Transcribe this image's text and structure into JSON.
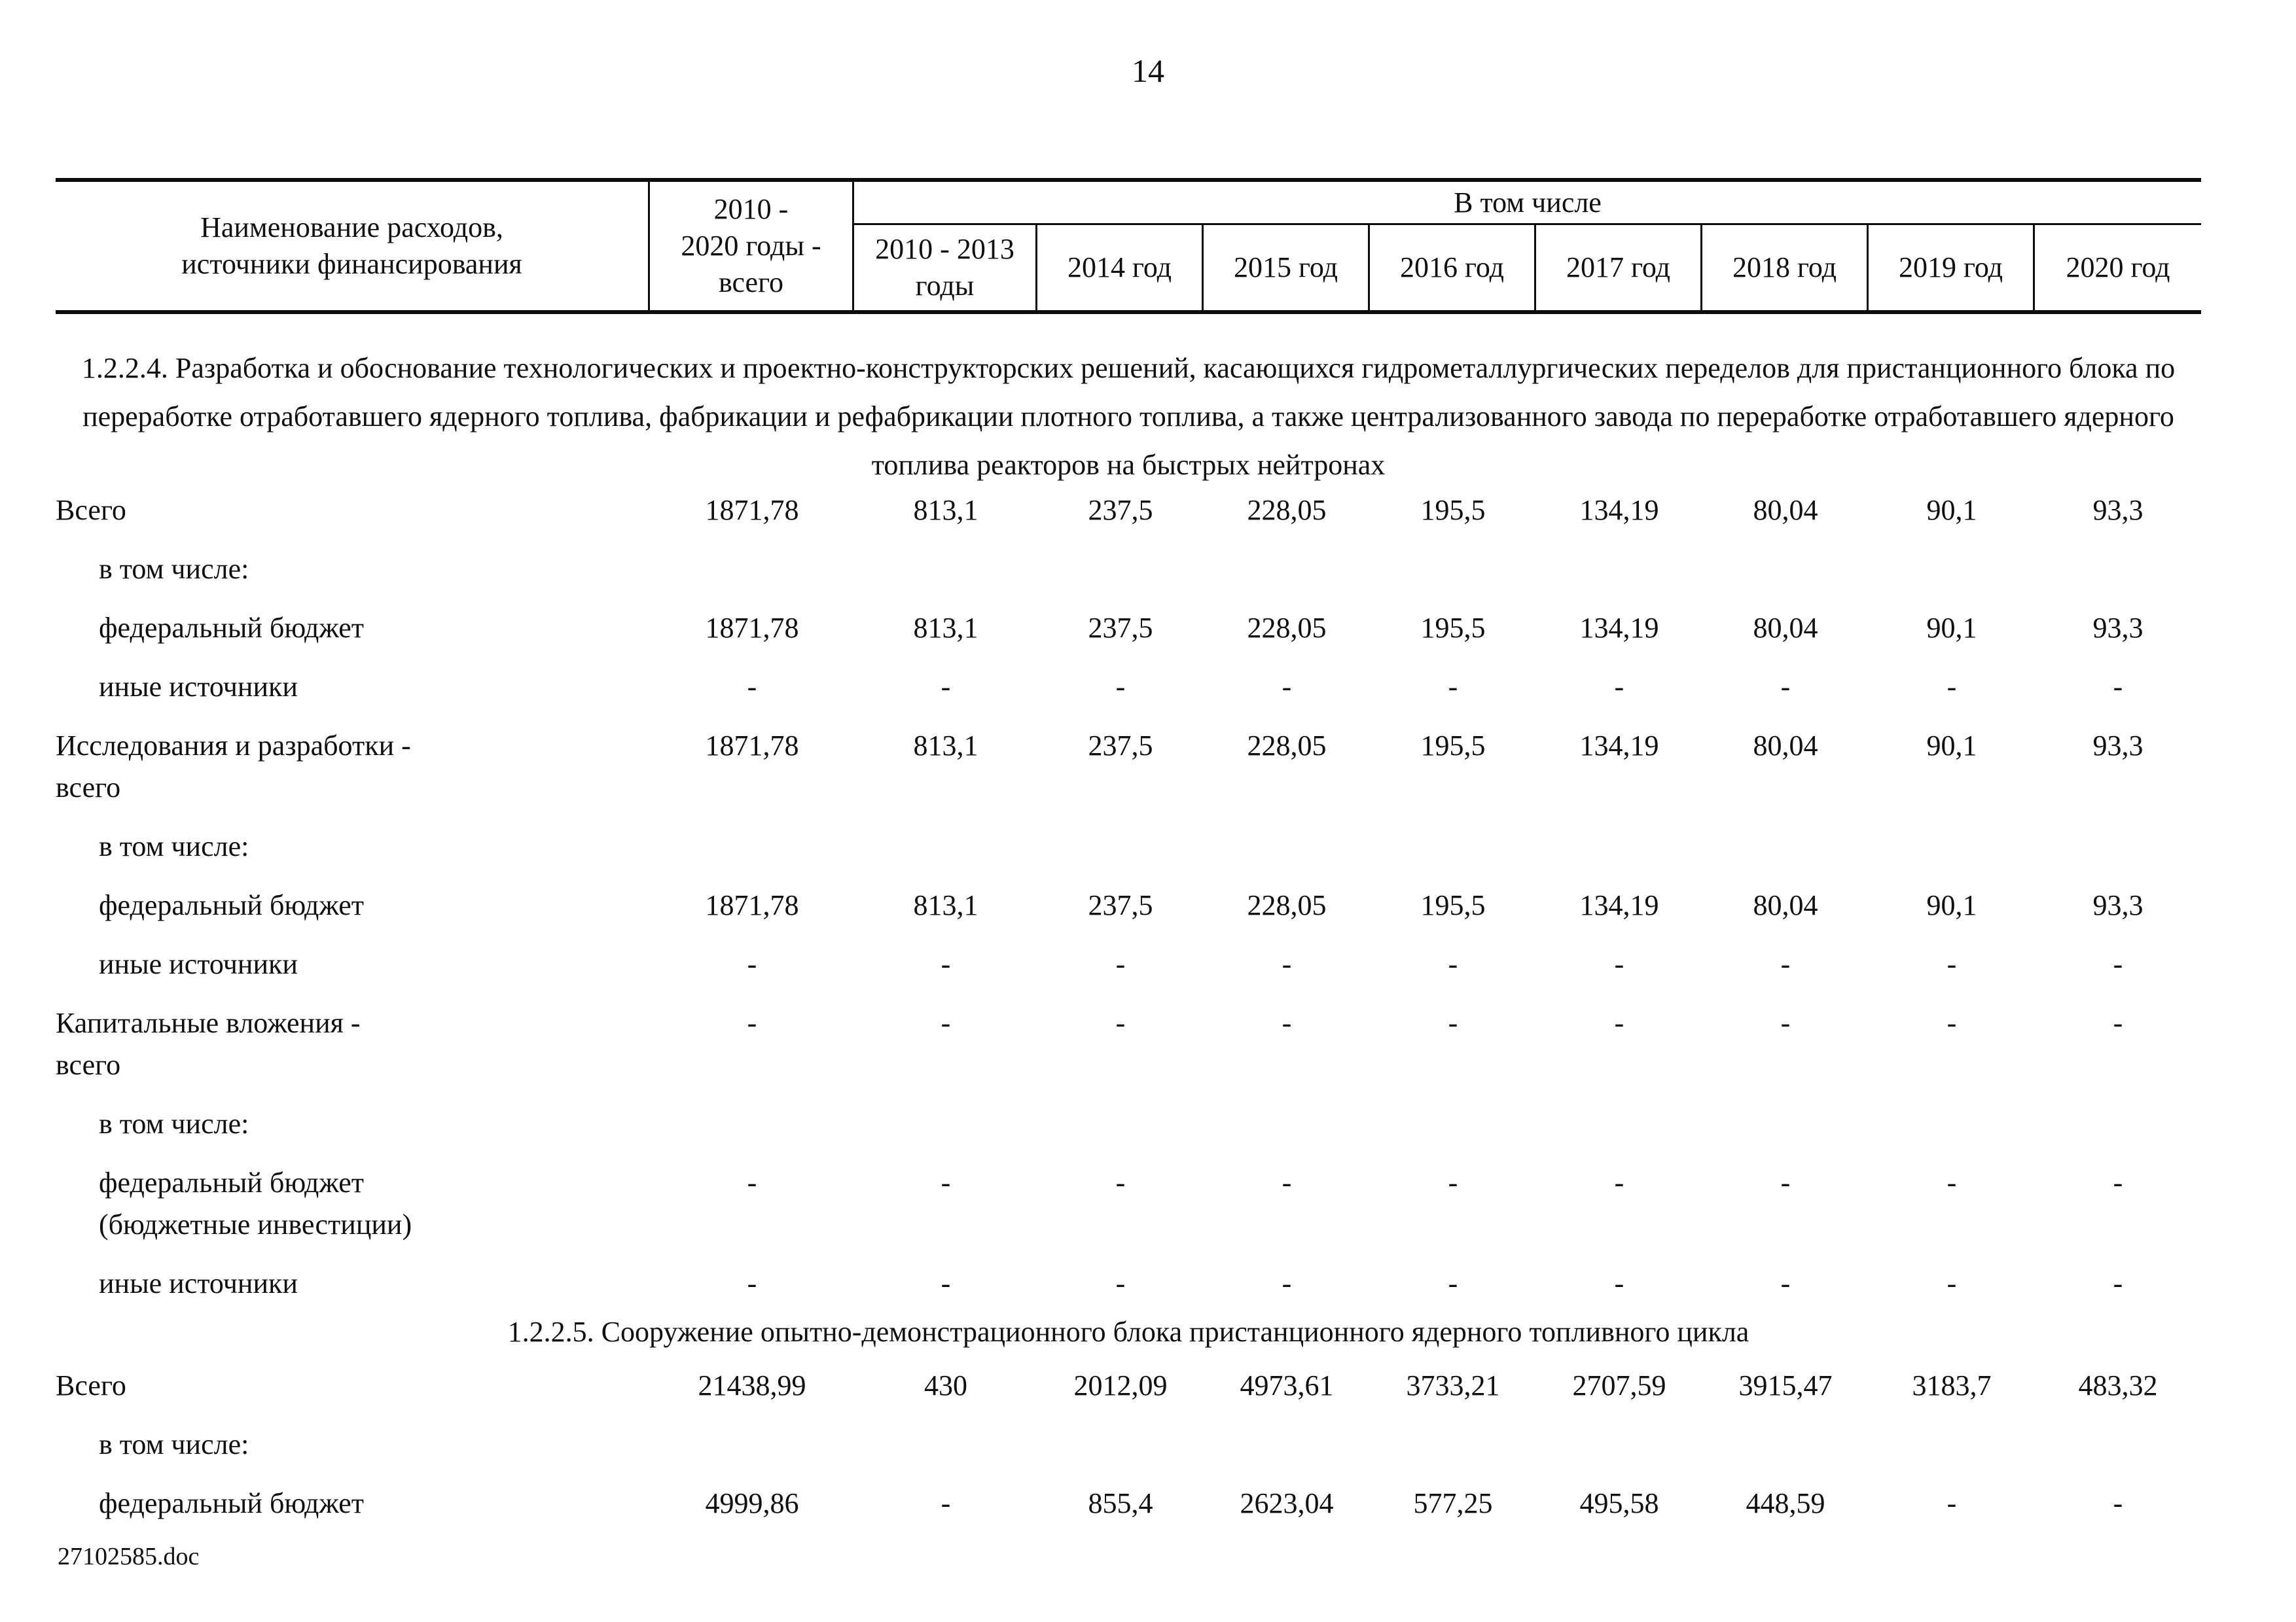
{
  "page": {
    "number": "14",
    "footer": "27102585.doc"
  },
  "table": {
    "header": {
      "name_lines": [
        "Наименование расходов,",
        "источники финансирования"
      ],
      "total_lines": [
        "2010 -",
        "2020 годы -",
        "всего"
      ],
      "including": "В том числе",
      "years": [
        "2010 - 2013 годы",
        "2014 год",
        "2015 год",
        "2016 год",
        "2017 год",
        "2018 год",
        "2019 год",
        "2020 год"
      ]
    },
    "sections": [
      {
        "title": "1.2.2.4. Разработка и обоснование технологических и проектно-конструкторских решений, касающихся гидрометаллургических переделов для пристанционного блока по переработке отработавшего ядерного топлива, фабрикации и рефабрикации плотного топлива, а также централизованного завода по переработке отработавшего ядерного топлива реакторов на быстрых нейтронах",
        "rows": [
          {
            "label": "Всего",
            "values": [
              "1871,78",
              "813,1",
              "237,5",
              "228,05",
              "195,5",
              "134,19",
              "80,04",
              "90,1",
              "93,3"
            ]
          },
          {
            "label": "в том числе:",
            "values": [
              "",
              "",
              "",
              "",
              "",
              "",
              "",
              "",
              ""
            ]
          },
          {
            "label": "федеральный бюджет",
            "values": [
              "1871,78",
              "813,1",
              "237,5",
              "228,05",
              "195,5",
              "134,19",
              "80,04",
              "90,1",
              "93,3"
            ]
          },
          {
            "label": "иные источники",
            "values": [
              "-",
              "-",
              "-",
              "-",
              "-",
              "-",
              "-",
              "-",
              "-"
            ]
          },
          {
            "label": "Исследования и разработки -",
            "label2": "всего",
            "values": [
              "1871,78",
              "813,1",
              "237,5",
              "228,05",
              "195,5",
              "134,19",
              "80,04",
              "90,1",
              "93,3"
            ]
          },
          {
            "label": "в том числе:",
            "values": [
              "",
              "",
              "",
              "",
              "",
              "",
              "",
              "",
              ""
            ]
          },
          {
            "label": "федеральный бюджет",
            "values": [
              "1871,78",
              "813,1",
              "237,5",
              "228,05",
              "195,5",
              "134,19",
              "80,04",
              "90,1",
              "93,3"
            ]
          },
          {
            "label": "иные источники",
            "values": [
              "-",
              "-",
              "-",
              "-",
              "-",
              "-",
              "-",
              "-",
              "-"
            ]
          },
          {
            "label": "Капитальные вложения -",
            "label2": "всего",
            "values": [
              "-",
              "-",
              "-",
              "-",
              "-",
              "-",
              "-",
              "-",
              "-"
            ]
          },
          {
            "label": "в том числе:",
            "values": [
              "",
              "",
              "",
              "",
              "",
              "",
              "",
              "",
              ""
            ]
          },
          {
            "label": "федеральный бюджет",
            "label2": "(бюджетные инвестиции)",
            "values": [
              "-",
              "-",
              "-",
              "-",
              "-",
              "-",
              "-",
              "-",
              "-"
            ]
          },
          {
            "label": "иные источники",
            "values": [
              "-",
              "-",
              "-",
              "-",
              "-",
              "-",
              "-",
              "-",
              "-"
            ]
          }
        ]
      },
      {
        "title": "1.2.2.5. Сооружение опытно-демонстрационного блока пристанционного ядерного топливного цикла",
        "rows": [
          {
            "label": "Всего",
            "values": [
              "21438,99",
              "430",
              "2012,09",
              "4973,61",
              "3733,21",
              "2707,59",
              "3915,47",
              "3183,7",
              "483,32"
            ]
          },
          {
            "label": "в том числе:",
            "values": [
              "",
              "",
              "",
              "",
              "",
              "",
              "",
              "",
              ""
            ]
          },
          {
            "label": "федеральный бюджет",
            "values": [
              "4999,86",
              "-",
              "855,4",
              "2623,04",
              "577,25",
              "495,58",
              "448,59",
              "-",
              "-"
            ]
          }
        ]
      }
    ]
  }
}
